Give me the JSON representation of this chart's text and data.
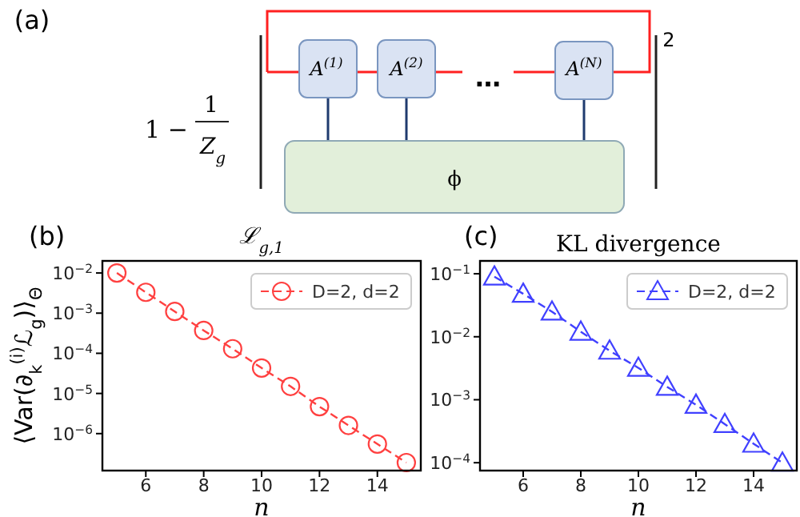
{
  "chart_data": [
    {
      "type": "other",
      "annotations": [
        "(a)",
        "1 −",
        "1",
        "Z$_{g}$",
        "A$^{(1)}$",
        "A$^{(2)}$",
        "…",
        "A$^{(N)}$",
        "ϕ",
        "2"
      ]
    },
    {
      "type": "line",
      "title": "ℒ$_{g,1}$",
      "xlabel": "n",
      "ylabel": "⟨Var(∂$_{k}$$^{(i)}$ℒ$_{g}$)⟩$_{Θ}$",
      "annotations": [
        "(b)"
      ],
      "x": [
        5,
        6,
        7,
        8,
        9,
        10,
        11,
        12,
        13,
        14,
        15
      ],
      "log": "y",
      "xlim": [
        4.5,
        15.5
      ],
      "ylim": [
        1.2e-07,
        0.02
      ],
      "xticks": [
        6,
        8,
        10,
        12,
        14
      ],
      "yticks": [
        {
          "value": 0.01,
          "label": "10$^{−2}$"
        },
        {
          "value": 0.001,
          "label": "10$^{−3}$"
        },
        {
          "value": 0.0001,
          "label": "10$^{−4}$"
        },
        {
          "value": 1e-05,
          "label": "10$^{−5}$"
        },
        {
          "value": 1e-06,
          "label": "10$^{−6}$"
        }
      ],
      "marker": "circle",
      "line_style": "dashed",
      "legend": "top right",
      "series": [
        {
          "name": "D=2, d=2",
          "color": "#ff4040",
          "values": [
            0.01,
            0.0033,
            0.0011,
            0.00037,
            0.00013,
            4.3e-05,
            1.5e-05,
            4.7e-06,
            1.6e-06,
            5.5e-07,
            1.9e-07
          ]
        }
      ]
    },
    {
      "type": "line",
      "title": "KL divergence",
      "xlabel": "n",
      "annotations": [
        "(c)"
      ],
      "x": [
        5,
        6,
        7,
        8,
        9,
        10,
        11,
        12,
        13,
        14,
        15
      ],
      "log": "y",
      "xlim": [
        4.5,
        15.5
      ],
      "ylim": [
        7.5e-05,
        0.16
      ],
      "xticks": [
        6,
        8,
        10,
        12,
        14
      ],
      "yticks": [
        {
          "value": 0.1,
          "label": "10$^{−1}$"
        },
        {
          "value": 0.01,
          "label": "10$^{−2}$"
        },
        {
          "value": 0.001,
          "label": "10$^{−3}$"
        },
        {
          "value": 0.0001,
          "label": "10$^{−4}$"
        }
      ],
      "marker": "triangle",
      "line_style": "dashed",
      "legend": "top right",
      "series": [
        {
          "name": "D=2, d=2",
          "color": "#4040ff",
          "values": [
            0.09,
            0.048,
            0.025,
            0.012,
            0.006,
            0.0032,
            0.0016,
            0.00083,
            0.00041,
            0.0002,
            0.0001
          ]
        }
      ]
    }
  ]
}
